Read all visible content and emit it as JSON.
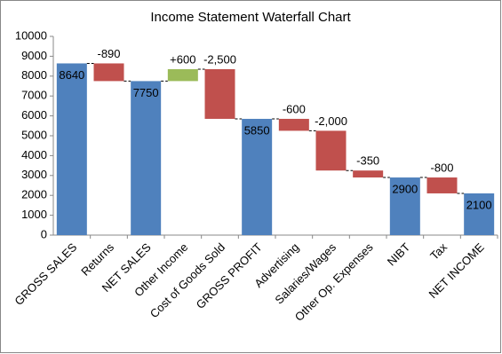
{
  "chart_data": {
    "type": "waterfall",
    "title": "Income Statement Waterfall Chart",
    "categories": [
      "GROSS SALES",
      "Returns",
      "NET SALES",
      "Other Income",
      "Cost of Goods Sold",
      "GROSS PROFIT",
      "Advertising",
      "Salaries/Wages",
      "Other Op. Expenses",
      "NIBT",
      "Tax",
      "NET INCOME"
    ],
    "values": [
      8640,
      -890,
      7750,
      600,
      -2500,
      5850,
      -600,
      -2000,
      -350,
      2900,
      -800,
      2100
    ],
    "value_labels": [
      "8640",
      "-890",
      "7750",
      "+600",
      "-2,500",
      "5850",
      "-600",
      "-2,000",
      "-350",
      "2900",
      "-800",
      "2100"
    ],
    "is_total": [
      true,
      false,
      true,
      false,
      false,
      true,
      false,
      false,
      false,
      true,
      false,
      true
    ],
    "total_color": "#4f81bd",
    "increase_color": "#9bbb59",
    "decrease_color": "#c0504d",
    "ylim": [
      0,
      10000
    ],
    "yticks": [
      0,
      1000,
      2000,
      3000,
      4000,
      5000,
      6000,
      7000,
      8000,
      9000,
      10000
    ]
  }
}
